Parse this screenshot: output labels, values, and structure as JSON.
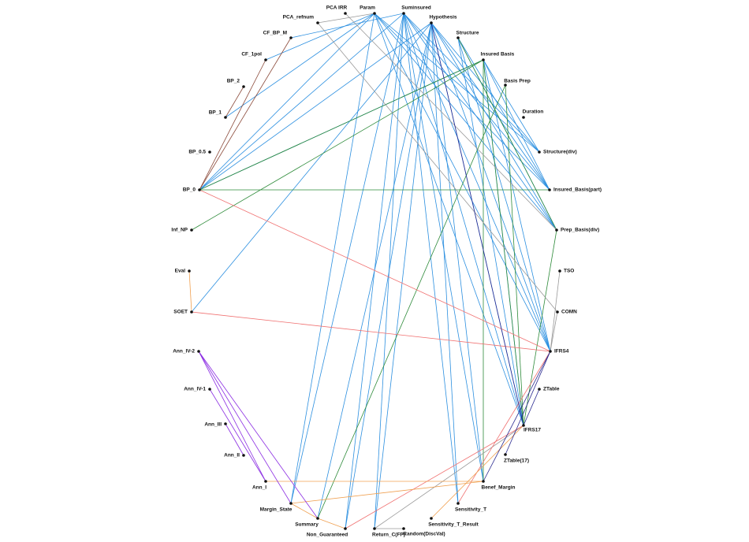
{
  "nodes": [
    {
      "label": "PCA IRR"
    },
    {
      "label": "Param"
    },
    {
      "label": "Suminsured"
    },
    {
      "label": "Hypothesis"
    },
    {
      "label": "Structure"
    },
    {
      "label": "Insured Basis"
    },
    {
      "label": "Basis Prep"
    },
    {
      "label": "Duration"
    },
    {
      "label": "Structure(div)"
    },
    {
      "label": "Insured_Basis(part)"
    },
    {
      "label": "Prep_Basis(div)"
    },
    {
      "label": "TSO"
    },
    {
      "label": "COMN"
    },
    {
      "label": "IFRS4"
    },
    {
      "label": "ZTable"
    },
    {
      "label": "IFRS17"
    },
    {
      "label": "ZTable(17)"
    },
    {
      "label": "Benef_Margin"
    },
    {
      "label": "Sensitivity_T"
    },
    {
      "label": "Sensitivity_T_Result"
    },
    {
      "label": "Random(DiscVal)"
    },
    {
      "label": "Return_C(FP)"
    },
    {
      "label": "Non_Guaranteed"
    },
    {
      "label": "Summary"
    },
    {
      "label": "Margin_State"
    },
    {
      "label": "Ann_I"
    },
    {
      "label": "Ann_II"
    },
    {
      "label": "Ann_III"
    },
    {
      "label": "Ann_IV-1"
    },
    {
      "label": "Ann_IV-2"
    },
    {
      "label": "SOET"
    },
    {
      "label": "Eval"
    },
    {
      "label": "Inf_NP"
    },
    {
      "label": "BP_0"
    },
    {
      "label": "BP_0.5"
    },
    {
      "label": "BP_1"
    },
    {
      "label": "BP_2"
    },
    {
      "label": "CF_1pol"
    },
    {
      "label": "CF_BP_M"
    },
    {
      "label": "PCA_refnum"
    }
  ]
}
